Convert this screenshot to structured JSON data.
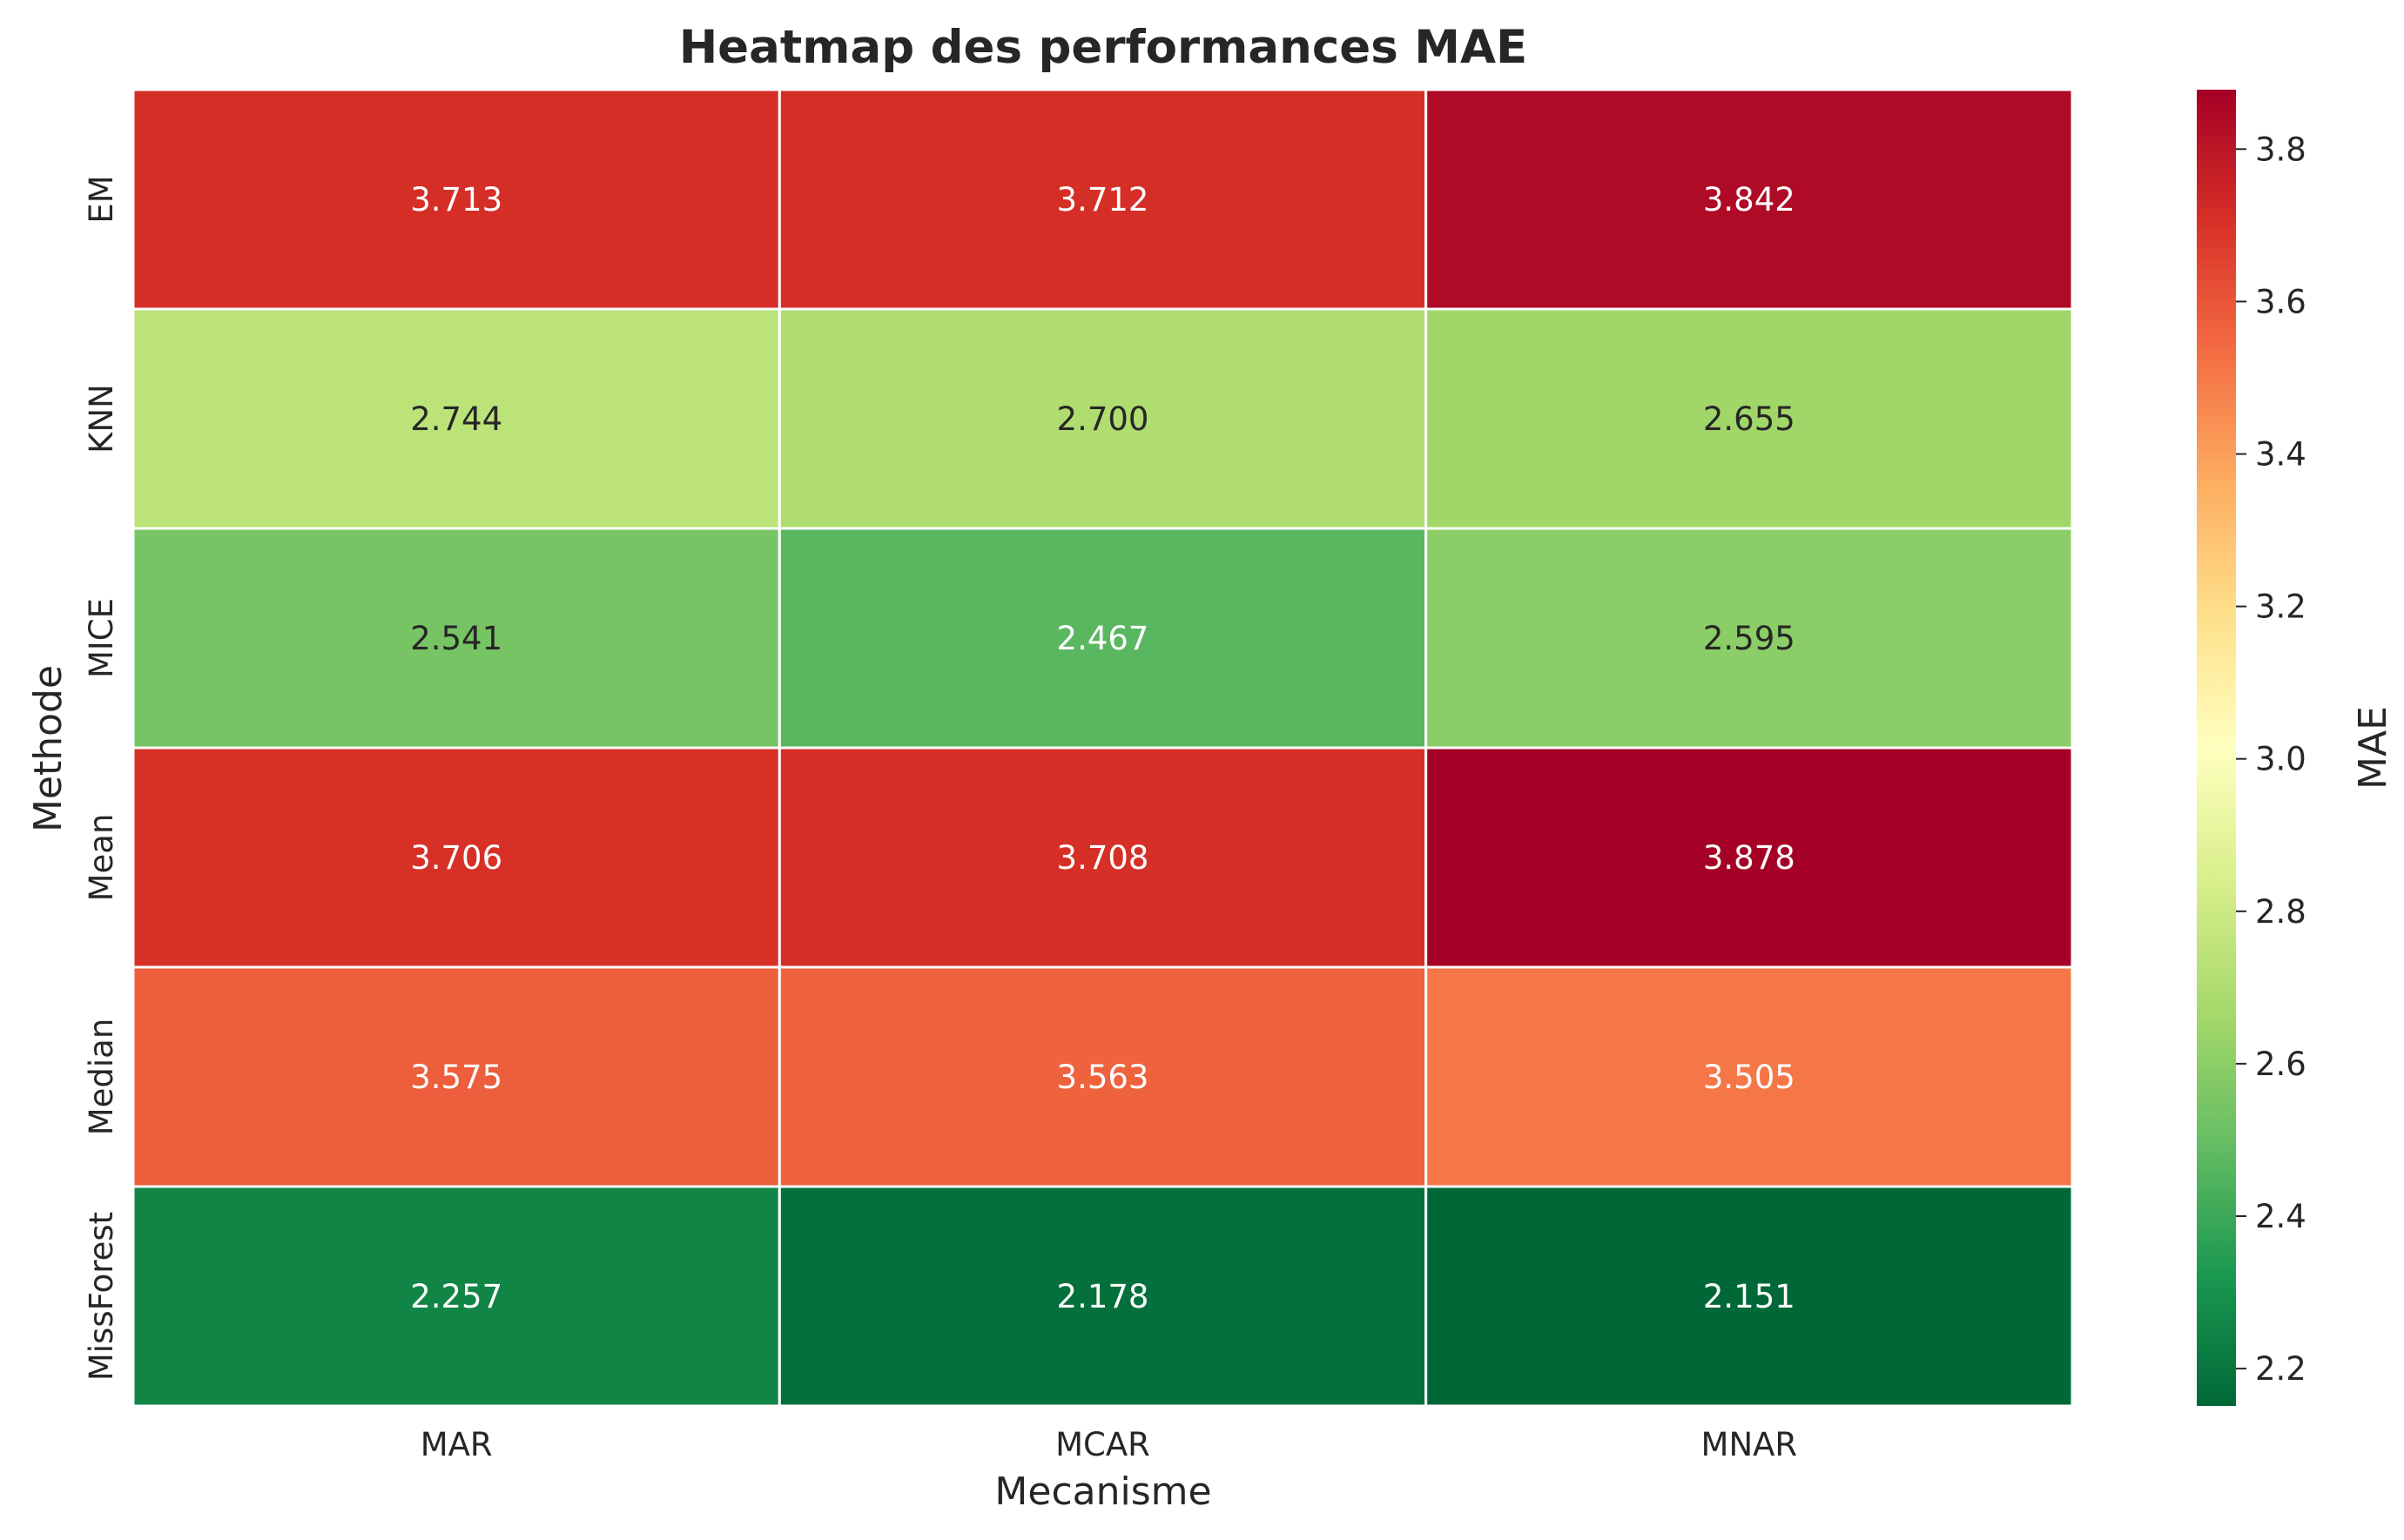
{
  "chart_data": {
    "type": "heatmap",
    "title": "Heatmap des performances MAE",
    "xlabel": "Mecanisme",
    "ylabel": "Methode",
    "x_categories": [
      "MAR",
      "MCAR",
      "MNAR"
    ],
    "y_categories": [
      "EM",
      "KNN",
      "MICE",
      "Mean",
      "Median",
      "MissForest"
    ],
    "values": [
      [
        3.713,
        3.712,
        3.842
      ],
      [
        2.744,
        2.7,
        2.655
      ],
      [
        2.541,
        2.467,
        2.595
      ],
      [
        3.706,
        3.708,
        3.878
      ],
      [
        3.575,
        3.563,
        3.505
      ],
      [
        2.257,
        2.178,
        2.151
      ]
    ],
    "value_labels": [
      [
        "3.713",
        "3.712",
        "3.842"
      ],
      [
        "2.744",
        "2.700",
        "2.655"
      ],
      [
        "2.541",
        "2.467",
        "2.595"
      ],
      [
        "3.706",
        "3.708",
        "3.878"
      ],
      [
        "3.575",
        "3.563",
        "3.505"
      ],
      [
        "2.257",
        "2.178",
        "2.151"
      ]
    ],
    "colormap": "RdYlGn_r",
    "colorbar": {
      "label": "MAE",
      "range": [
        2.151,
        3.878
      ],
      "ticks": [
        "2.2",
        "2.4",
        "2.6",
        "2.8",
        "3.0",
        "3.2",
        "3.4",
        "3.6",
        "3.8"
      ],
      "tick_values": [
        2.2,
        2.4,
        2.6,
        2.8,
        3.0,
        3.2,
        3.4,
        3.6,
        3.8
      ]
    },
    "colors": {
      "cell_border": "#ffffff",
      "text_dark": "#262626",
      "text_light": "#ffffff"
    }
  }
}
